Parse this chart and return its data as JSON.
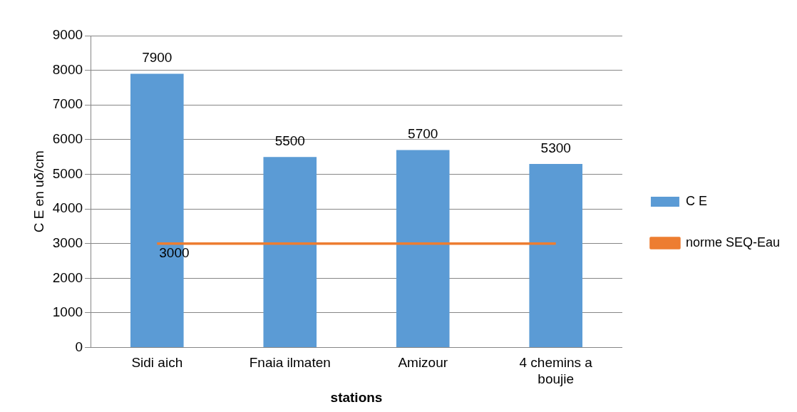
{
  "chart_data": {
    "type": "bar",
    "xlabel": "stations",
    "ylabel": "C E en uδ/cm",
    "categories": [
      "Sidi aich",
      "Fnaia ilmaten",
      "Amizour",
      "4 chemins a boujie"
    ],
    "series": [
      {
        "name": "C E",
        "color": "#5b9bd5",
        "values": [
          7900,
          5500,
          5700,
          5300
        ],
        "value_labels": [
          "7900",
          "5500",
          "5700",
          "5300"
        ]
      },
      {
        "name": "norme SEQ-Eau",
        "type": "line",
        "color": "#ed7d31",
        "values": [
          3000,
          3000,
          3000,
          3000
        ],
        "value_labels": [
          "3000",
          null,
          null,
          null
        ]
      }
    ],
    "ylim": [
      0,
      9000
    ],
    "yticks": [
      0,
      1000,
      2000,
      3000,
      4000,
      5000,
      6000,
      7000,
      8000,
      9000
    ],
    "grid": "y",
    "legend": "right",
    "marker": "none",
    "line_style": "solid"
  }
}
